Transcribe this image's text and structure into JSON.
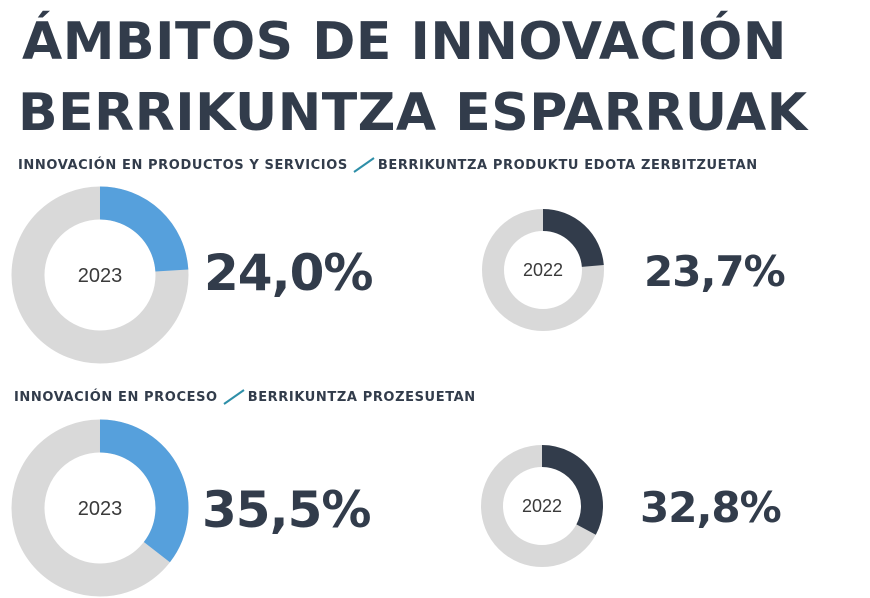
{
  "title_line1": "ÁMBITOS DE INNOVACIÓN",
  "title_line2": "BERRIKUNTZA ESPARRUAK",
  "colors": {
    "text": "#323c4b",
    "blue": "#56a0dc",
    "dark": "#323c4b",
    "grey": "#d9d9d9"
  },
  "sections": [
    {
      "label_es": "INNOVACIÓN EN PRODUCTOS Y SERVICIOS",
      "label_eu": "BERRIKUNTZA PRODUKTU EDOTA ZERBITZUETAN"
    },
    {
      "label_es": "INNOVACIÓN EN PROCESO",
      "label_eu": "BERRIKUNTZA PROZESUETAN"
    }
  ],
  "chart_data": [
    {
      "type": "pie",
      "donut": true,
      "section": "INNOVACIÓN EN PRODUCTOS Y SERVICIOS",
      "center_label": "2023",
      "value": 24.0,
      "value_label": "24,0%",
      "color": "#56a0dc"
    },
    {
      "type": "pie",
      "donut": true,
      "section": "INNOVACIÓN EN PRODUCTOS Y SERVICIOS",
      "center_label": "2022",
      "value": 23.7,
      "value_label": "23,7%",
      "color": "#323c4b"
    },
    {
      "type": "pie",
      "donut": true,
      "section": "INNOVACIÓN EN PROCESO",
      "center_label": "2023",
      "value": 35.5,
      "value_label": "35,5%",
      "color": "#56a0dc"
    },
    {
      "type": "pie",
      "donut": true,
      "section": "INNOVACIÓN EN PROCESO",
      "center_label": "2022",
      "value": 32.8,
      "value_label": "32,8%",
      "color": "#323c4b"
    }
  ]
}
